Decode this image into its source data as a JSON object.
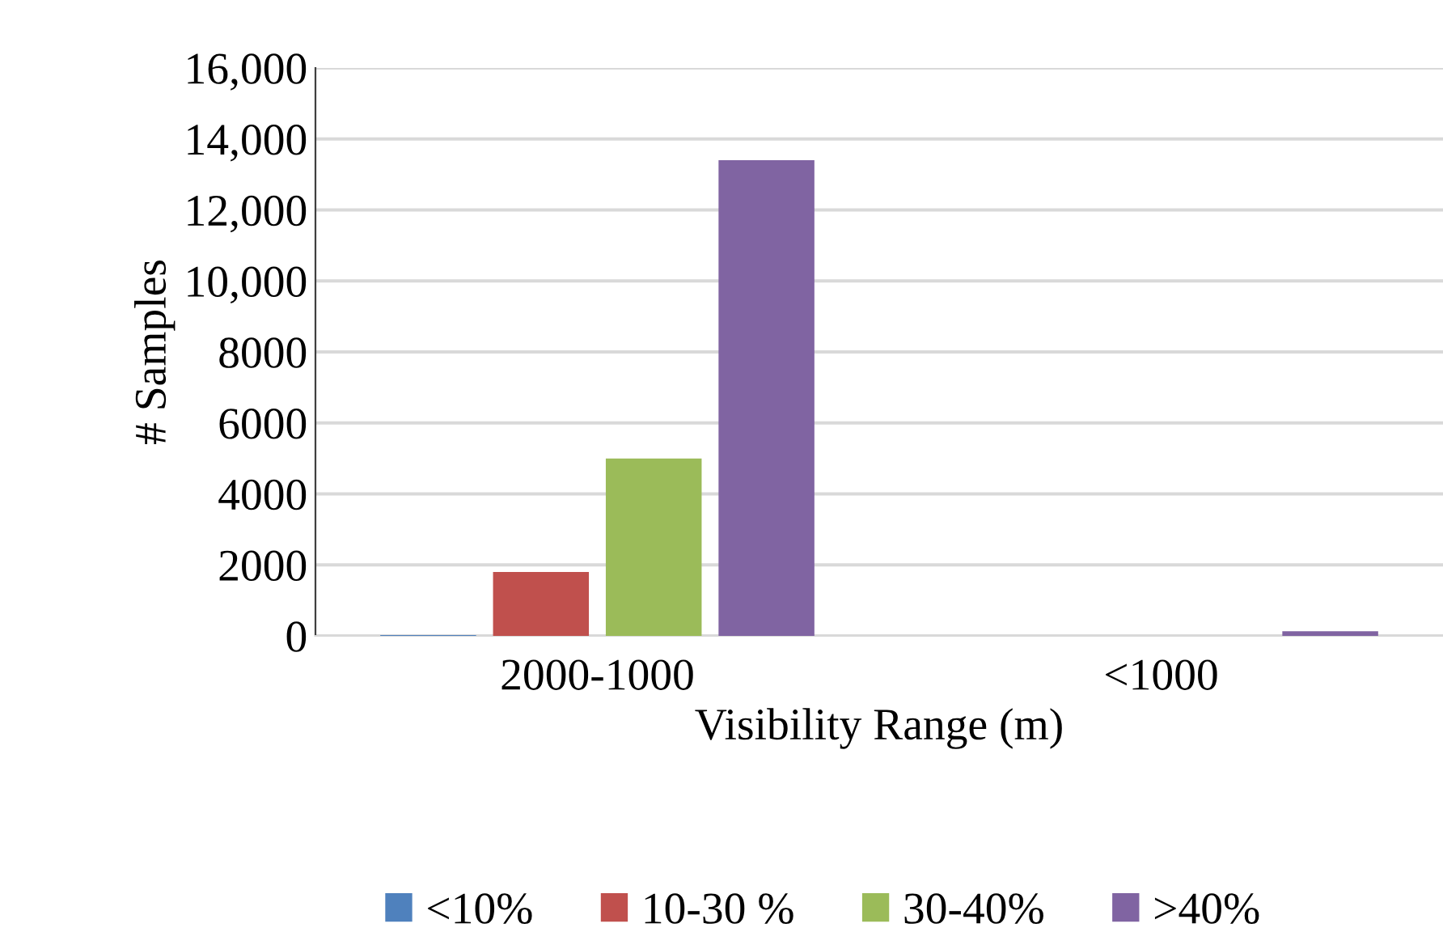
{
  "chart_data": {
    "type": "bar",
    "xlabel": "Visibility Range (m)",
    "ylabel": "# Samples",
    "categories": [
      "2000-1000",
      "<1000"
    ],
    "series": [
      {
        "name": "<10%",
        "color": "#4f81bd",
        "values": [
          20,
          null
        ]
      },
      {
        "name": "10-30 %",
        "color": "#c0504d",
        "values": [
          1800,
          null
        ]
      },
      {
        "name": "30-40%",
        "color": "#9bbb59",
        "values": [
          5000,
          null
        ]
      },
      {
        "name": ">40%",
        "color": "#8064a2",
        "values": [
          13400,
          130
        ]
      }
    ],
    "ylim": [
      0,
      16000
    ],
    "yticks": [
      0,
      2000,
      4000,
      6000,
      8000,
      {
        "value": 10000,
        "label": "10,000"
      },
      {
        "value": 12000,
        "label": "12,000"
      },
      {
        "value": 14000,
        "label": "14,000"
      },
      {
        "value": 16000,
        "label": "16,000"
      }
    ],
    "grid": "y",
    "legend": "bottom"
  }
}
